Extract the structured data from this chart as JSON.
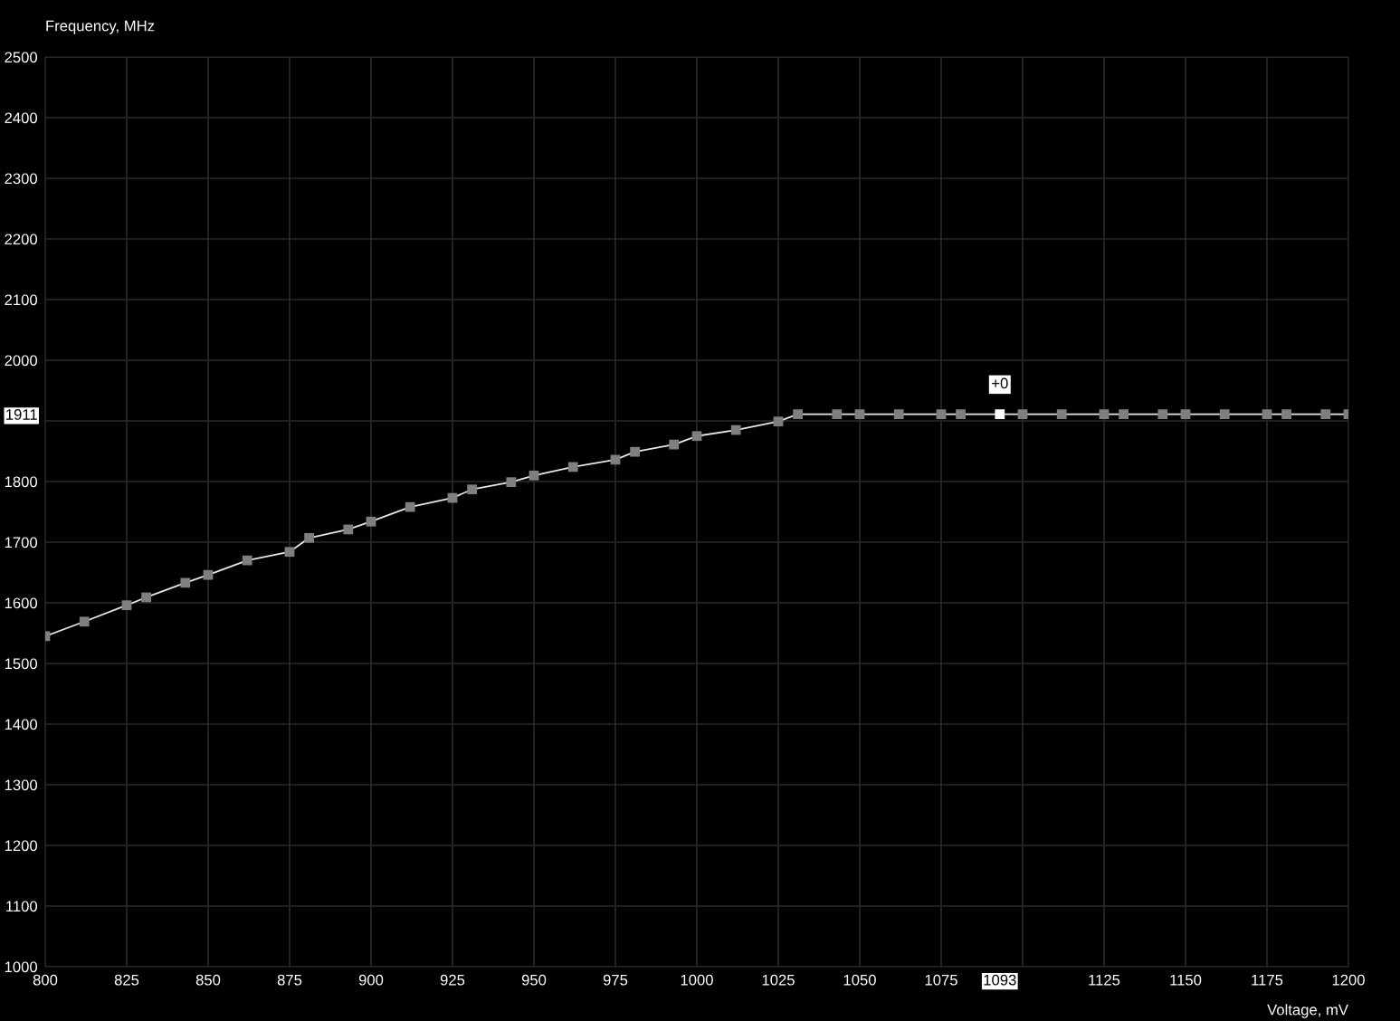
{
  "chart_data": {
    "type": "line",
    "xlabel": "Voltage, mV",
    "ylabel": "Frequency, MHz",
    "x": [
      800,
      812,
      825,
      831,
      843,
      850,
      862,
      875,
      881,
      893,
      900,
      912,
      925,
      931,
      943,
      950,
      962,
      975,
      981,
      993,
      1000,
      1012,
      1025,
      1031,
      1043,
      1050,
      1062,
      1075,
      1081,
      1093,
      1100,
      1112,
      1125,
      1131,
      1143,
      1150,
      1162,
      1175,
      1181,
      1193,
      1200
    ],
    "series": [
      {
        "color": "#e6e6e6",
        "values": [
          1545,
          1569,
          1596,
          1609,
          1633,
          1646,
          1670,
          1684,
          1707,
          1721,
          1734,
          1758,
          1773,
          1787,
          1799,
          1810,
          1824,
          1836,
          1849,
          1861,
          1875,
          1885,
          1899,
          1911,
          1911,
          1911,
          1911,
          1911,
          1911,
          1911,
          1911,
          1911,
          1911,
          1911,
          1911,
          1911,
          1911,
          1911,
          1911,
          1911,
          1911
        ],
        "colors": [
          "#7f7f7f",
          "#7f7f7f",
          "#7f7f7f",
          "#7f7f7f",
          "#7f7f7f",
          "#7f7f7f",
          "#7f7f7f",
          "#7f7f7f",
          "#7f7f7f",
          "#7f7f7f",
          "#7f7f7f",
          "#7f7f7f",
          "#7f7f7f",
          "#7f7f7f",
          "#7f7f7f",
          "#7f7f7f",
          "#7f7f7f",
          "#7f7f7f",
          "#7f7f7f",
          "#7f7f7f",
          "#7f7f7f",
          "#7f7f7f",
          "#7f7f7f",
          "#7f7f7f",
          "#7f7f7f",
          "#7f7f7f",
          "#7f7f7f",
          "#7f7f7f",
          "#7f7f7f",
          "#ffffff",
          "#7f7f7f",
          "#7f7f7f",
          "#7f7f7f",
          "#7f7f7f",
          "#7f7f7f",
          "#7f7f7f",
          "#7f7f7f",
          "#7f7f7f",
          "#7f7f7f",
          "#7f7f7f",
          "#7f7f7f"
        ]
      }
    ],
    "xlim": [
      800,
      1200
    ],
    "xticks": [
      800,
      825,
      850,
      875,
      900,
      925,
      950,
      975,
      1000,
      1025,
      1050,
      1075,
      {
        "value": 1093,
        "label": "1093"
      },
      {
        "value": 1100,
        "label": null
      },
      1125,
      1150,
      1175,
      1200
    ],
    "ylim": [
      1000,
      2500
    ],
    "yticks": [
      1000,
      1100,
      1200,
      1300,
      1400,
      1500,
      1600,
      1700,
      1800,
      {
        "value": 1900,
        "label": null
      },
      {
        "value": 1911,
        "label": "1911"
      },
      2000,
      2100,
      2200,
      2300,
      2400,
      2500
    ],
    "grid": true,
    "marker": "square",
    "line_style": "solid",
    "annotations": [
      {
        "text": "+0",
        "x": 1093,
        "y": 1911
      }
    ]
  }
}
